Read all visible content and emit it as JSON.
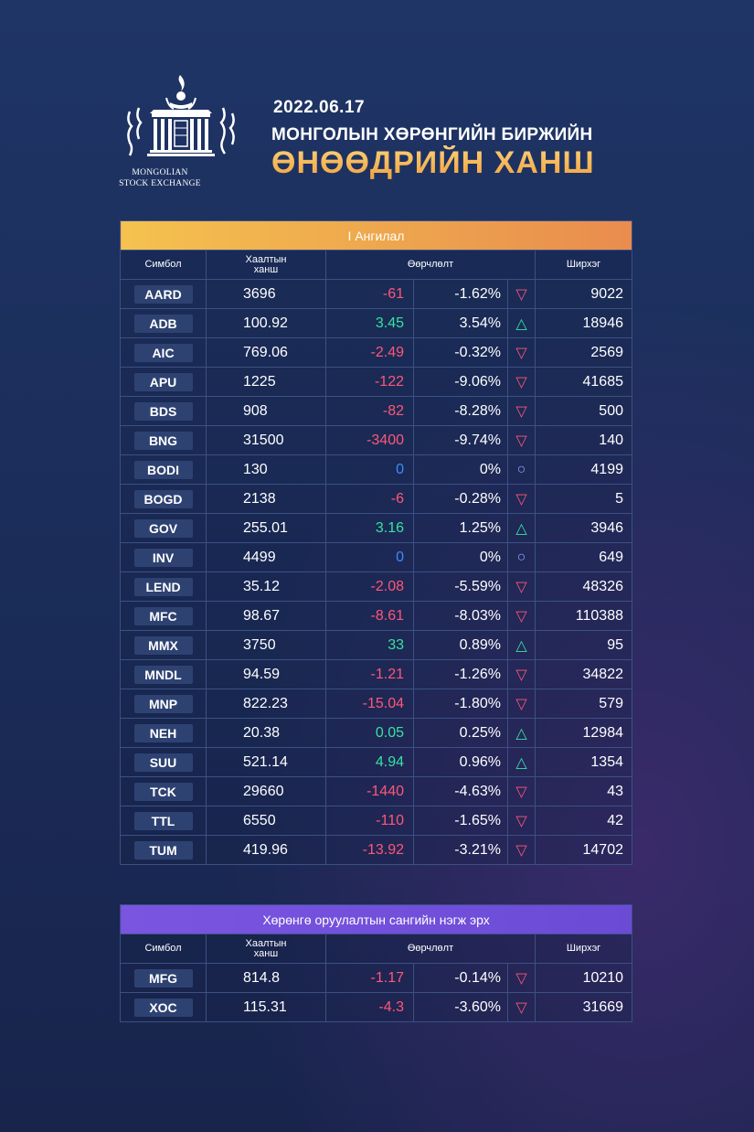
{
  "logo": {
    "caption_line1": "MONGOLIAN",
    "caption_line2": "STOCK EXCHANGE"
  },
  "header": {
    "date": "2022.06.17",
    "subtitle": "МОНГОЛЫН ХӨРӨНГИЙН БИРЖИЙН",
    "title": "ӨНӨӨДРИЙН ХАНШ"
  },
  "colors": {
    "accent_orange": "#f0a23a",
    "accent_purple": "#6b4bd6",
    "negative": "#ff5777",
    "positive": "#35e3a0",
    "neutral": "#3b8cff"
  },
  "columns": {
    "symbol": "Симбол",
    "close_line1": "Хаалтын",
    "close_line2": "ханш",
    "change": "Өөрчлөлт",
    "volume": "Ширхэг"
  },
  "section1": {
    "title": "I Ангилал",
    "rows": [
      {
        "symbol": "AARD",
        "price": "3696",
        "change": "-61",
        "pct": "-1.62%",
        "dir": "down",
        "volume": "9022"
      },
      {
        "symbol": "ADB",
        "price": "100.92",
        "change": "3.45",
        "pct": "3.54%",
        "dir": "up",
        "volume": "18946"
      },
      {
        "symbol": "AIC",
        "price": "769.06",
        "change": "-2.49",
        "pct": "-0.32%",
        "dir": "down",
        "volume": "2569"
      },
      {
        "symbol": "APU",
        "price": "1225",
        "change": "-122",
        "pct": "-9.06%",
        "dir": "down",
        "volume": "41685"
      },
      {
        "symbol": "BDS",
        "price": "908",
        "change": "-82",
        "pct": "-8.28%",
        "dir": "down",
        "volume": "500"
      },
      {
        "symbol": "BNG",
        "price": "31500",
        "change": "-3400",
        "pct": "-9.74%",
        "dir": "down",
        "volume": "140"
      },
      {
        "symbol": "BODI",
        "price": "130",
        "change": "0",
        "pct": "0%",
        "dir": "flat",
        "volume": "4199"
      },
      {
        "symbol": "BOGD",
        "price": "2138",
        "change": "-6",
        "pct": "-0.28%",
        "dir": "down",
        "volume": "5"
      },
      {
        "symbol": "GOV",
        "price": "255.01",
        "change": "3.16",
        "pct": "1.25%",
        "dir": "up",
        "volume": "3946"
      },
      {
        "symbol": "INV",
        "price": "4499",
        "change": "0",
        "pct": "0%",
        "dir": "flat",
        "volume": "649"
      },
      {
        "symbol": "LEND",
        "price": "35.12",
        "change": "-2.08",
        "pct": "-5.59%",
        "dir": "down",
        "volume": "48326"
      },
      {
        "symbol": "MFC",
        "price": "98.67",
        "change": "-8.61",
        "pct": "-8.03%",
        "dir": "down",
        "volume": "110388"
      },
      {
        "symbol": "MMX",
        "price": "3750",
        "change": "33",
        "pct": "0.89%",
        "dir": "up",
        "volume": "95"
      },
      {
        "symbol": "MNDL",
        "price": "94.59",
        "change": "-1.21",
        "pct": "-1.26%",
        "dir": "down",
        "volume": "34822"
      },
      {
        "symbol": "MNP",
        "price": "822.23",
        "change": "-15.04",
        "pct": "-1.80%",
        "dir": "down",
        "volume": "579"
      },
      {
        "symbol": "NEH",
        "price": "20.38",
        "change": "0.05",
        "pct": "0.25%",
        "dir": "up",
        "volume": "12984"
      },
      {
        "symbol": "SUU",
        "price": "521.14",
        "change": "4.94",
        "pct": "0.96%",
        "dir": "up",
        "volume": "1354"
      },
      {
        "symbol": "TCK",
        "price": "29660",
        "change": "-1440",
        "pct": "-4.63%",
        "dir": "down",
        "volume": "43"
      },
      {
        "symbol": "TTL",
        "price": "6550",
        "change": "-110",
        "pct": "-1.65%",
        "dir": "down",
        "volume": "42"
      },
      {
        "symbol": "TUM",
        "price": "419.96",
        "change": "-13.92",
        "pct": "-3.21%",
        "dir": "down",
        "volume": "14702"
      }
    ]
  },
  "section2": {
    "title": "Хөрөнгө оруулалтын сангийн нэгж эрх",
    "rows": [
      {
        "symbol": "MFG",
        "price": "814.8",
        "change": "-1.17",
        "pct": "-0.14%",
        "dir": "down",
        "volume": "10210"
      },
      {
        "symbol": "XOC",
        "price": "115.31",
        "change": "-4.3",
        "pct": "-3.60%",
        "dir": "down",
        "volume": "31669"
      }
    ]
  }
}
